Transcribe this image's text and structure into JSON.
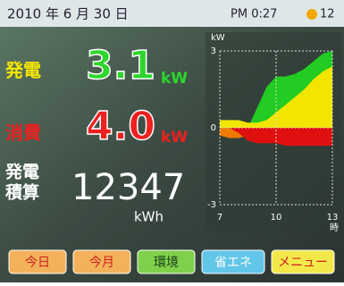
{
  "status": {
    "date": "2010 年 6 月 30 日",
    "time": "PM 0:27",
    "badge": "12"
  },
  "generation": {
    "label": "発電",
    "value": "3.1",
    "unit": "kW"
  },
  "consumption": {
    "label": "消費",
    "value": "4.0",
    "unit": "kW"
  },
  "total": {
    "label_lines": [
      "発電",
      "積算"
    ],
    "value": "12347",
    "unit": "kWh"
  },
  "graph": {
    "type": "area",
    "y_label": "kW",
    "x_label": "時",
    "x": [
      7,
      7.5,
      8,
      8.5,
      9,
      9.5,
      10,
      10.5,
      11,
      11.5,
      12,
      12.5,
      13
    ],
    "series": [
      {
        "color": "#22cc22",
        "values": [
          0,
          0,
          0,
          0,
          0.8,
          1.6,
          2.0,
          2.0,
          2.1,
          2.3,
          2.6,
          2.9,
          3.0
        ]
      },
      {
        "color": "#f2e600",
        "values": [
          0.3,
          0.3,
          0.3,
          0.2,
          0.2,
          0.3,
          0.6,
          0.9,
          1.2,
          1.5,
          1.9,
          2.2,
          2.4
        ]
      },
      {
        "color": "#ee7a00",
        "values": [
          -0.3,
          -0.4,
          -0.4,
          -0.3,
          0,
          0,
          0,
          0,
          0,
          0,
          0,
          0,
          0
        ]
      },
      {
        "color": "#e01010",
        "values": [
          0,
          0,
          -0.2,
          -0.5,
          -0.6,
          -0.6,
          -0.6,
          -0.7,
          -0.7,
          -0.7,
          -0.7,
          -0.7,
          -0.7
        ]
      }
    ],
    "xlim": [
      7,
      13
    ],
    "ylim": [
      -3,
      3
    ],
    "xticks": [
      7,
      10,
      13
    ],
    "yticks": [
      -3,
      0,
      3
    ]
  },
  "buttons": [
    "今日",
    "今月",
    "環境",
    "省エネ",
    "メニュー"
  ]
}
